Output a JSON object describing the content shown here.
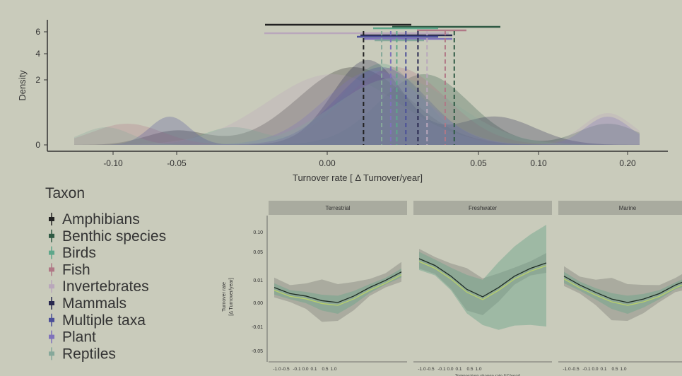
{
  "chart_data": [
    {
      "type": "area",
      "xlabel": "Turnover rate [ Δ Turnover/year]",
      "ylabel": "Density",
      "x_ticks": [
        "-0.10",
        "-0.05",
        "0.00",
        "0.05",
        "0.10",
        "0.20"
      ],
      "y_ticks": [
        "0",
        "2",
        "4",
        "6"
      ],
      "grid": false,
      "legend_title": "Taxon",
      "series": [
        {
          "name": "Amphibians",
          "color": "#222222",
          "mean": 0.012
        },
        {
          "name": "Benthic species",
          "color": "#2f5a44",
          "mean": 0.042
        },
        {
          "name": "Birds",
          "color": "#5ea78a",
          "mean": 0.023
        },
        {
          "name": "Fish",
          "color": "#b07886",
          "mean": 0.039
        },
        {
          "name": "Invertebrates",
          "color": "#b9a7bb",
          "mean": 0.033
        },
        {
          "name": "Mammals",
          "color": "#28284f",
          "mean": 0.03
        },
        {
          "name": "Multiple taxa",
          "color": "#4b4f98",
          "mean": 0.026
        },
        {
          "name": "Plant",
          "color": "#7f72bb",
          "mean": 0.021
        },
        {
          "name": "Reptiles",
          "color": "#86a89a",
          "mean": 0.018
        }
      ]
    },
    {
      "type": "line",
      "ylabel_lines": [
        "Turnover rate",
        "[Δ Turnover/year]"
      ],
      "y_ticks": [
        "0.10",
        "0.05",
        "0.01",
        "0.00",
        "-0.01",
        "-0.05"
      ],
      "x_ticks": [
        "-1.0",
        "-0.5",
        "-0.1",
        "0.0",
        "0.1",
        "0.5",
        "1.0"
      ],
      "xlabel": "Temperature change rate [°C/year]",
      "panels": [
        {
          "label": "Terrestrial",
          "line_y": [
            0.012,
            0.006,
            0.004,
            0.001,
            0.0,
            0.004,
            0.012,
            0.022,
            0.04
          ]
        },
        {
          "label": "Freshwater",
          "line_y": [
            0.09,
            0.06,
            0.03,
            0.01,
            0.0035,
            0.012,
            0.03,
            0.05,
            0.07
          ]
        },
        {
          "label": "Marine",
          "line_y": [
            0.03,
            0.015,
            0.007,
            0.002,
            0.0,
            0.002,
            0.006,
            0.015,
            0.025
          ]
        }
      ]
    }
  ]
}
